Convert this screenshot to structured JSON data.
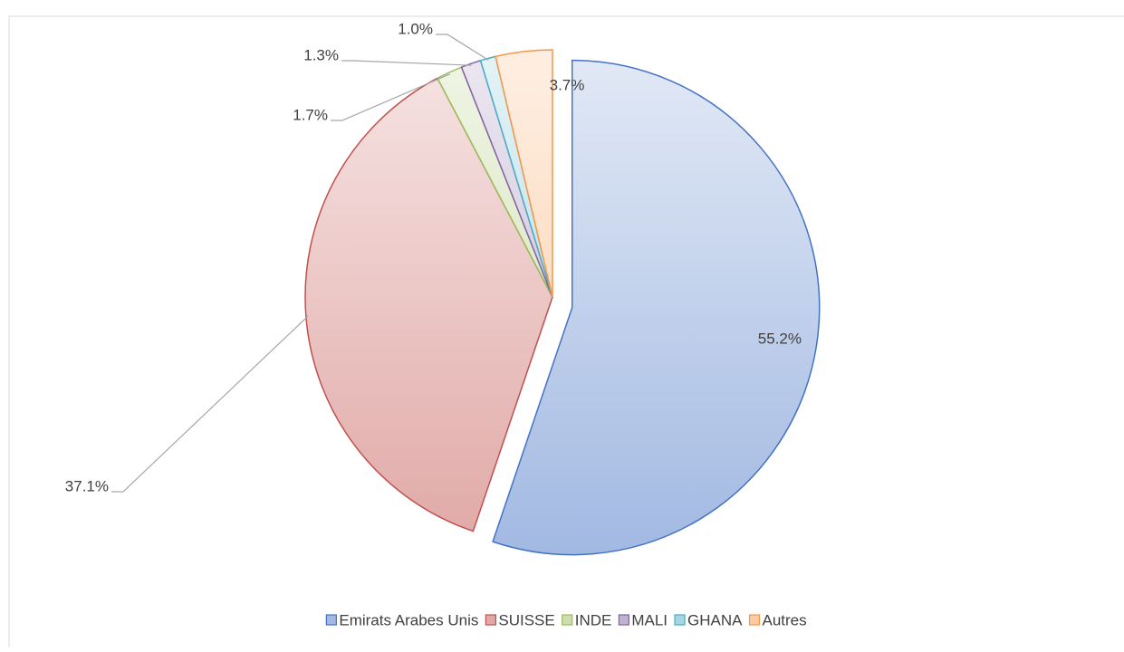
{
  "chart_data": {
    "type": "pie",
    "categories": [
      "Emirats Arabes Unis",
      "SUISSE",
      "INDE",
      "MALI",
      "GHANA",
      "Autres"
    ],
    "values": [
      55.2,
      37.1,
      1.7,
      1.3,
      1.0,
      3.7
    ],
    "value_labels": [
      "55.2%",
      "37.1%",
      "1.7%",
      "1.3%",
      "1.0%",
      "3.7%"
    ],
    "colors": [
      "#4472c4",
      "#c0504d",
      "#9bbb59",
      "#8064a2",
      "#4bacc6",
      "#f79646"
    ],
    "legend": "bottom"
  }
}
